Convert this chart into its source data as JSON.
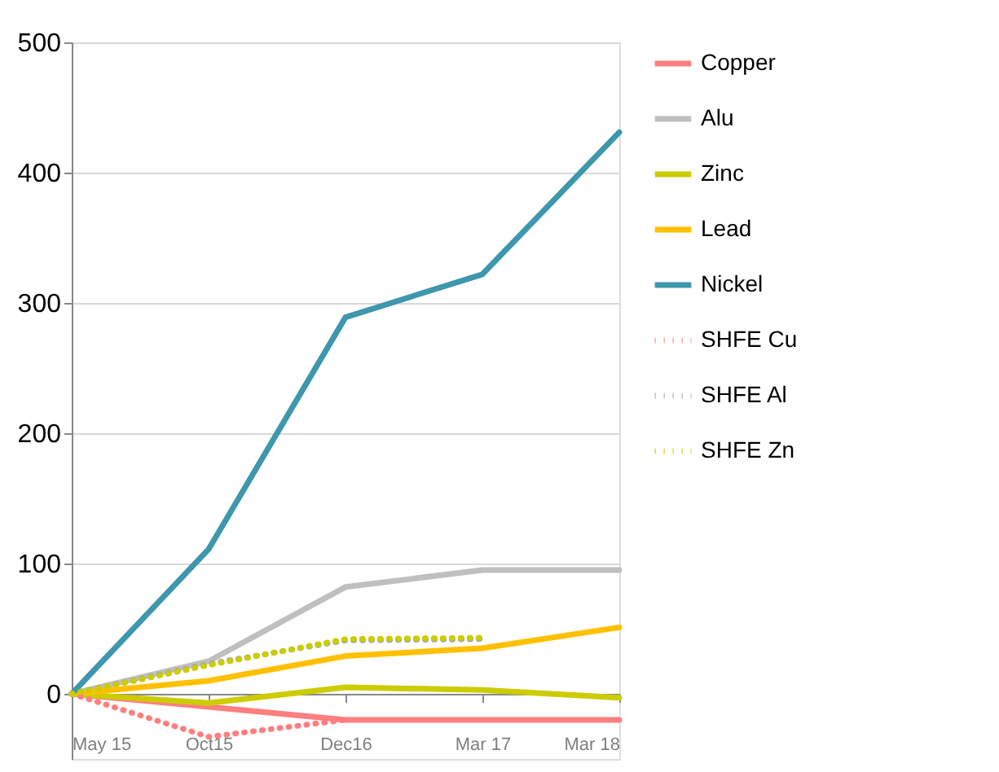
{
  "chart_data": {
    "type": "line",
    "categories": [
      "May 15",
      "Oct15",
      "Dec16",
      "Mar 17",
      "Mar 18"
    ],
    "ylim": [
      -50,
      500
    ],
    "yticks": [
      0,
      100,
      200,
      300,
      400,
      500
    ],
    "grid": "y",
    "legend": "right",
    "marker": "none",
    "series": [
      {
        "name": "Copper",
        "color": "#ff7f7f",
        "line_style": "solid",
        "values": [
          0,
          -10,
          -20,
          -20,
          -20
        ]
      },
      {
        "name": "Alu",
        "color": "#bfbfbf",
        "line_style": "solid",
        "values": [
          0,
          25,
          82,
          95,
          95
        ]
      },
      {
        "name": "Zinc",
        "color": "#cccc00",
        "line_style": "solid",
        "values": [
          0,
          -7,
          5,
          3,
          -3
        ]
      },
      {
        "name": "Lead",
        "color": "#ffc000",
        "line_style": "solid",
        "values": [
          0,
          10,
          29,
          35,
          51
        ]
      },
      {
        "name": "Nickel",
        "color": "#3e97ad",
        "line_style": "solid",
        "values": [
          0,
          111,
          289,
          322,
          431
        ]
      },
      {
        "name": "SHFE Cu",
        "color": "#ff7f7f",
        "line_style": "dotted",
        "values": [
          0,
          -33,
          -20,
          null,
          null
        ]
      },
      {
        "name": "SHFE Al",
        "color": "#a6a6a6",
        "line_style": "dotted",
        "values": [
          0,
          23,
          41,
          42,
          null
        ]
      },
      {
        "name": "SHFE Zn",
        "color": "#cccc00",
        "line_style": "dotted",
        "values": [
          0,
          22,
          42,
          43,
          null
        ]
      }
    ]
  }
}
